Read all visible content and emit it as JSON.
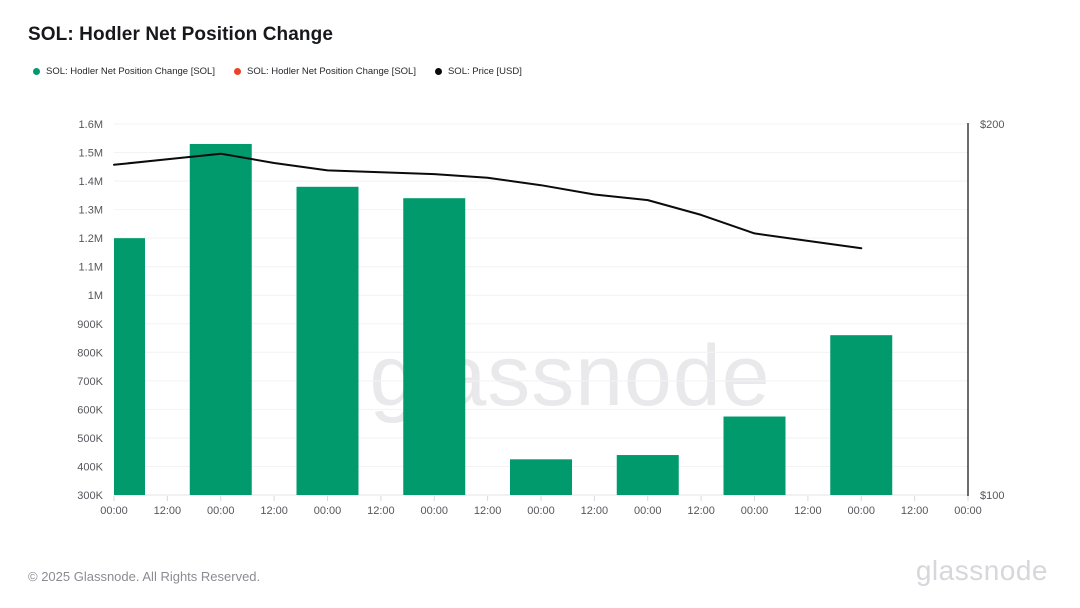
{
  "title": "SOL: Hodler Net Position Change",
  "legend": [
    {
      "label": "SOL: Hodler Net Position Change [SOL]",
      "color": "#009a6c"
    },
    {
      "label": "SOL: Hodler Net Position Change [SOL]",
      "color": "#e8432b"
    },
    {
      "label": "SOL: Price [USD]",
      "color": "#0b0b0d"
    }
  ],
  "watermark": "glassnode",
  "footer": {
    "copyright": "© 2025 Glassnode. All Rights Reserved.",
    "logo": "glassnode"
  },
  "chart_data": {
    "type": "bar",
    "title": "SOL: Hodler Net Position Change",
    "grid": true,
    "legend_position": "top-left",
    "x_tick_labels": [
      "00:00",
      "12:00",
      "00:00",
      "12:00",
      "00:00",
      "12:00",
      "00:00",
      "12:00",
      "00:00",
      "12:00",
      "00:00",
      "12:00",
      "00:00",
      "12:00",
      "00:00",
      "12:00",
      "00:00"
    ],
    "left_axis": {
      "min": 300000,
      "max": 1600000,
      "ticks": [
        {
          "label": "1.6M",
          "value": 1600000
        },
        {
          "label": "1.5M",
          "value": 1500000
        },
        {
          "label": "1.4M",
          "value": 1400000
        },
        {
          "label": "1.3M",
          "value": 1300000
        },
        {
          "label": "1.2M",
          "value": 1200000
        },
        {
          "label": "1.1M",
          "value": 1100000
        },
        {
          "label": "1M",
          "value": 1000000
        },
        {
          "label": "900K",
          "value": 900000
        },
        {
          "label": "800K",
          "value": 800000
        },
        {
          "label": "700K",
          "value": 700000
        },
        {
          "label": "600K",
          "value": 600000
        },
        {
          "label": "500K",
          "value": 500000
        },
        {
          "label": "400K",
          "value": 400000
        },
        {
          "label": "300K",
          "value": 300000
        }
      ]
    },
    "right_axis": {
      "min": 100,
      "max": 200,
      "ticks": [
        {
          "label": "$200",
          "value": 200
        },
        {
          "label": "$100",
          "value": 100
        }
      ]
    },
    "series": [
      {
        "name": "SOL: Hodler Net Position Change [SOL]",
        "type": "bar",
        "axis": "left",
        "color": "#009a6c",
        "tick_indices": [
          0,
          2,
          4,
          6,
          8,
          10,
          12,
          14
        ],
        "values": [
          1200000,
          1530000,
          1380000,
          1340000,
          425000,
          440000,
          575000,
          860000
        ]
      },
      {
        "name": "SOL: Price [USD]",
        "type": "line",
        "axis": "right",
        "color": "#0b0b0d",
        "tick_indices": [
          0,
          1,
          2,
          3,
          4,
          5,
          6,
          7,
          8,
          9,
          10,
          11,
          12,
          13,
          14
        ],
        "values": [
          189,
          190.5,
          192,
          189.5,
          187.5,
          187,
          186.5,
          185.5,
          183.5,
          181,
          179.5,
          175.5,
          170.5,
          168.5,
          166.5
        ]
      }
    ]
  }
}
